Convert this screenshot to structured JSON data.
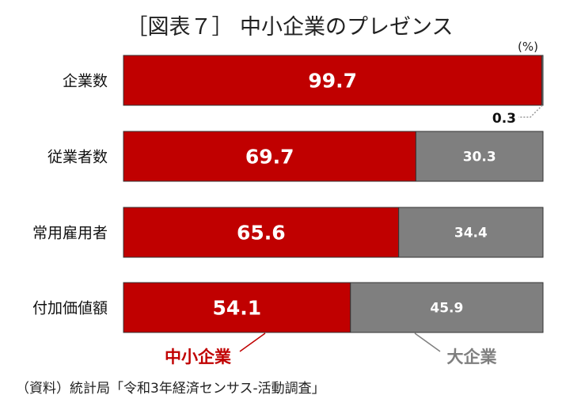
{
  "chart_data": {
    "type": "bar",
    "orientation": "horizontal",
    "stacked": true,
    "title": "［図表７］ 中小企業のプレゼンス",
    "unit": "(%)",
    "categories": [
      "企業数",
      "従業者数",
      "常用雇用者",
      "付加価値額"
    ],
    "series": [
      {
        "name": "中小企業",
        "values": [
          99.7,
          69.7,
          65.6,
          54.1
        ],
        "color": "#c00000"
      },
      {
        "name": "大企業",
        "values": [
          0.3,
          30.3,
          34.4,
          45.9
        ],
        "color": "#7f7f7f"
      }
    ],
    "value_labels": [
      [
        "99.7",
        "69.7",
        "65.6",
        "54.1"
      ],
      [
        "0.3",
        "30.3",
        "34.4",
        "45.9"
      ]
    ],
    "xlim": [
      0,
      100
    ],
    "grid": false,
    "legend_placement": "bottom"
  },
  "source": "（資料）統計局「令和3年経済センサス-活動調査」"
}
